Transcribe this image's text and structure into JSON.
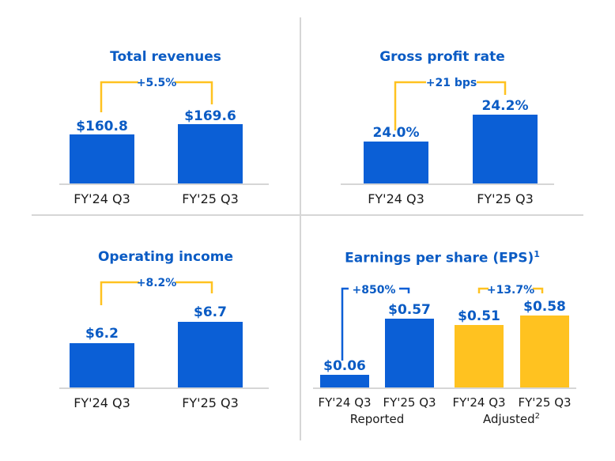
{
  "colors": {
    "blue": "#0b5fd6",
    "yellow": "#ffc220",
    "title": "#0a5bc4",
    "axis": "#c8c8c8"
  },
  "panels": {
    "revenue": {
      "title": "Total revenues",
      "change": "+5.5%"
    },
    "gross": {
      "title": "Gross profit rate",
      "change": "+21 bps"
    },
    "opinc": {
      "title": "Operating income",
      "change": "+8.2%"
    },
    "eps": {
      "title": "Earnings per share (EPS)",
      "title_sup": "1",
      "change_reported": "+850%",
      "change_adjusted": "+13.7%",
      "group_reported": "Reported",
      "group_adjusted": "Adjusted",
      "group_adjusted_sup": "2"
    }
  },
  "chart_data": [
    {
      "type": "bar",
      "title": "Total revenues",
      "categories": [
        "FY'24 Q3",
        "FY'25 Q3"
      ],
      "values": [
        160.8,
        169.6
      ],
      "labels": [
        "$160.8",
        "$169.6"
      ]
    },
    {
      "type": "bar",
      "title": "Gross profit rate",
      "categories": [
        "FY'24 Q3",
        "FY'25 Q3"
      ],
      "values": [
        24.0,
        24.2
      ],
      "labels": [
        "24.0%",
        "24.2%"
      ]
    },
    {
      "type": "bar",
      "title": "Operating income",
      "categories": [
        "FY'24 Q3",
        "FY'25 Q3"
      ],
      "values": [
        6.2,
        6.7
      ],
      "labels": [
        "$6.2",
        "$6.7"
      ]
    },
    {
      "type": "bar",
      "title": "Earnings per share (EPS)",
      "categories": [
        "FY'24 Q3",
        "FY'25 Q3",
        "FY'24 Q3",
        "FY'25 Q3"
      ],
      "groups": [
        "Reported",
        "Reported",
        "Adjusted",
        "Adjusted"
      ],
      "values": [
        0.06,
        0.57,
        0.51,
        0.58
      ],
      "labels": [
        "$0.06",
        "$0.57",
        "$0.51",
        "$0.58"
      ]
    }
  ]
}
